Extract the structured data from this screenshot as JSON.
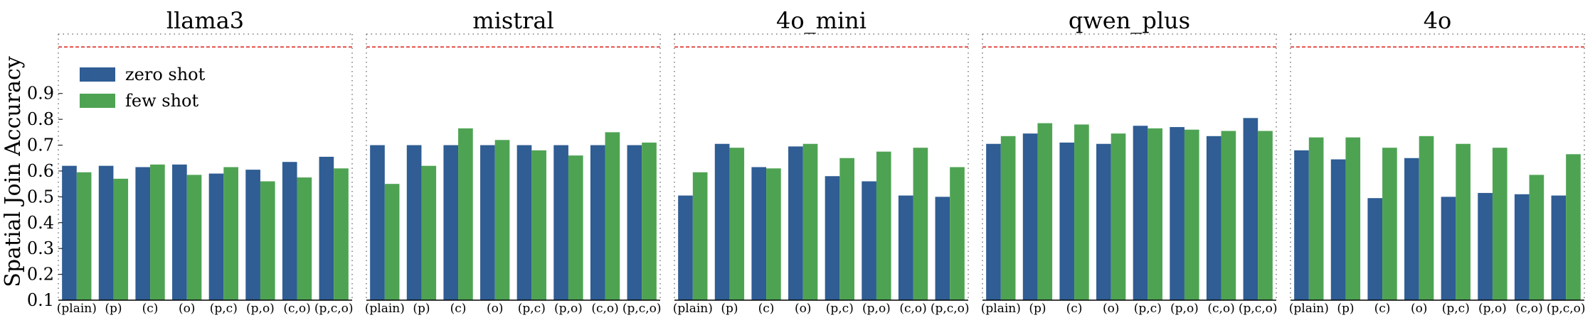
{
  "figure": {
    "ylabel": "Spatial Join Accuracy",
    "legend": [
      {
        "label": "zero shot",
        "color": "#2f5d94"
      },
      {
        "label": "few shot",
        "color": "#4ea353"
      }
    ]
  },
  "chart_data": [
    {
      "type": "bar",
      "title": "llama3",
      "categories": [
        "(plain)",
        "(p)",
        "(c)",
        "(o)",
        "(p,c)",
        "(p,o)",
        "(c,o)",
        "(p,c,o)"
      ],
      "series": [
        {
          "name": "zero shot",
          "values": [
            0.62,
            0.62,
            0.615,
            0.625,
            0.59,
            0.605,
            0.635,
            0.655
          ]
        },
        {
          "name": "few shot",
          "values": [
            0.595,
            0.57,
            0.625,
            0.585,
            0.615,
            0.56,
            0.575,
            0.61
          ]
        }
      ],
      "ylim": [
        0.1,
        1.13
      ],
      "yticks": [
        0.1,
        0.2,
        0.3,
        0.4,
        0.5,
        0.6,
        0.7,
        0.8,
        0.9
      ],
      "reference_line": 1.08,
      "legend_position": "top-left",
      "colors": [
        "#2f5d94",
        "#4ea353"
      ]
    },
    {
      "type": "bar",
      "title": "mistral",
      "categories": [
        "(plain)",
        "(p)",
        "(c)",
        "(o)",
        "(p,c)",
        "(p,o)",
        "(c,o)",
        "(p,c,o)"
      ],
      "series": [
        {
          "name": "zero shot",
          "values": [
            0.7,
            0.7,
            0.7,
            0.7,
            0.7,
            0.7,
            0.7,
            0.7
          ]
        },
        {
          "name": "few shot",
          "values": [
            0.55,
            0.62,
            0.765,
            0.72,
            0.68,
            0.66,
            0.75,
            0.71
          ]
        }
      ],
      "ylim": [
        0.1,
        1.13
      ],
      "reference_line": 1.08,
      "colors": [
        "#2f5d94",
        "#4ea353"
      ]
    },
    {
      "type": "bar",
      "title": "4o_mini",
      "categories": [
        "(plain)",
        "(p)",
        "(c)",
        "(o)",
        "(p,c)",
        "(p,o)",
        "(c,o)",
        "(p,c,o)"
      ],
      "series": [
        {
          "name": "zero shot",
          "values": [
            0.505,
            0.705,
            0.615,
            0.695,
            0.58,
            0.56,
            0.505,
            0.5
          ]
        },
        {
          "name": "few shot",
          "values": [
            0.595,
            0.69,
            0.61,
            0.705,
            0.65,
            0.675,
            0.69,
            0.615
          ]
        }
      ],
      "ylim": [
        0.1,
        1.13
      ],
      "reference_line": 1.08,
      "colors": [
        "#2f5d94",
        "#4ea353"
      ]
    },
    {
      "type": "bar",
      "title": "qwen_plus",
      "categories": [
        "(plain)",
        "(p)",
        "(c)",
        "(o)",
        "(p,c)",
        "(p,o)",
        "(c,o)",
        "(p,c,o)"
      ],
      "series": [
        {
          "name": "zero shot",
          "values": [
            0.705,
            0.745,
            0.71,
            0.705,
            0.775,
            0.77,
            0.735,
            0.805
          ]
        },
        {
          "name": "few shot",
          "values": [
            0.735,
            0.785,
            0.78,
            0.745,
            0.765,
            0.76,
            0.755,
            0.755
          ]
        }
      ],
      "ylim": [
        0.1,
        1.13
      ],
      "reference_line": 1.08,
      "colors": [
        "#2f5d94",
        "#4ea353"
      ]
    },
    {
      "type": "bar",
      "title": "4o",
      "categories": [
        "(plain)",
        "(p)",
        "(c)",
        "(o)",
        "(p,c)",
        "(p,o)",
        "(c,o)",
        "(p,c,o)"
      ],
      "series": [
        {
          "name": "zero shot",
          "values": [
            0.68,
            0.645,
            0.495,
            0.65,
            0.5,
            0.515,
            0.51,
            0.505
          ]
        },
        {
          "name": "few shot",
          "values": [
            0.73,
            0.73,
            0.69,
            0.735,
            0.705,
            0.69,
            0.585,
            0.665
          ]
        }
      ],
      "ylim": [
        0.1,
        1.13
      ],
      "reference_line": 1.08,
      "colors": [
        "#2f5d94",
        "#4ea353"
      ]
    }
  ]
}
